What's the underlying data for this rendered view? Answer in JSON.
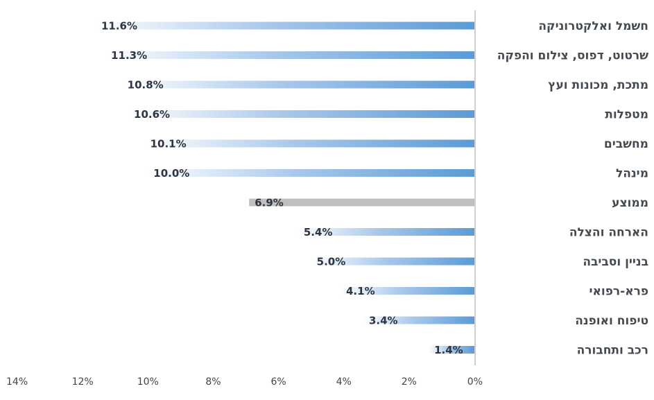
{
  "chart_data": {
    "type": "bar",
    "orientation": "horizontal",
    "direction": "right-to-left",
    "categories": [
      "חשמל ואלקטרוניקה",
      "שרטוט, דפוס, צילום והפקה",
      "מתכת, מכונות ועץ",
      "מטפלות",
      "מחשבים",
      "מינהל",
      "ממוצע",
      "הארחה והצלה",
      "בניין וסביבה",
      "פרא-רפואי",
      "טיפוח ואופנה",
      "רכב ותחבורה"
    ],
    "values": [
      11.6,
      11.3,
      10.8,
      10.6,
      10.1,
      10.0,
      6.9,
      5.4,
      5.0,
      4.1,
      3.4,
      1.4
    ],
    "value_labels": [
      "11.6%",
      "11.3%",
      "10.8%",
      "10.6%",
      "10.1%",
      "10.0%",
      "6.9%",
      "5.4%",
      "5.0%",
      "4.1%",
      "3.4%",
      "1.4%"
    ],
    "highlight_category": "ממוצע",
    "xlim": [
      0,
      14
    ],
    "xticks": [
      0,
      2,
      4,
      6,
      8,
      10,
      12,
      14
    ],
    "xtick_labels": [
      "0%",
      "2%",
      "4%",
      "6%",
      "8%",
      "10%",
      "12%",
      "14%"
    ],
    "title": "",
    "xlabel": "",
    "ylabel": "",
    "grid": false,
    "legend": "none",
    "colors": {
      "bar": "#5b9bd5",
      "bar_fade": "#ffffff",
      "highlight": "#bfbfbf",
      "axis": "#d0d0d0"
    }
  }
}
